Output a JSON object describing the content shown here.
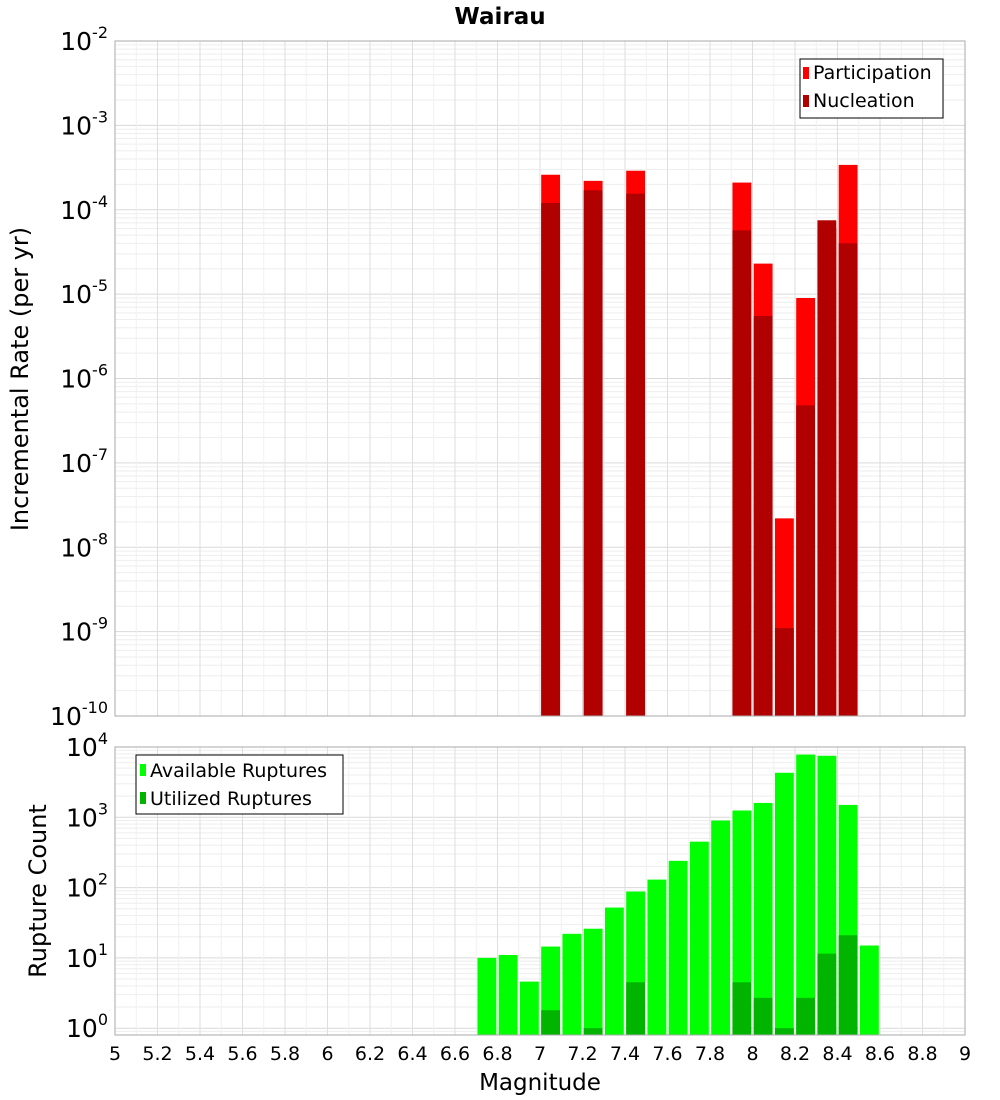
{
  "title": "Wairau",
  "xlabel": "Magnitude",
  "xlim": [
    5,
    9
  ],
  "x_ticks": [
    "5",
    "5.2",
    "5.4",
    "5.6",
    "5.8",
    "6",
    "6.2",
    "6.4",
    "6.6",
    "6.8",
    "7",
    "7.2",
    "7.4",
    "7.6",
    "7.8",
    "8",
    "8.2",
    "8.4",
    "8.6",
    "8.8",
    "9"
  ],
  "bin_width": 0.1,
  "chart_data": [
    {
      "type": "bar",
      "scale": "log",
      "ylabel": "Incremental Rate (per yr)",
      "ylim": [
        1e-10,
        0.01
      ],
      "y_ticks": [
        {
          "base": "10",
          "exp": "-10"
        },
        {
          "base": "10",
          "exp": "-9"
        },
        {
          "base": "10",
          "exp": "-8"
        },
        {
          "base": "10",
          "exp": "-7"
        },
        {
          "base": "10",
          "exp": "-6"
        },
        {
          "base": "10",
          "exp": "-5"
        },
        {
          "base": "10",
          "exp": "-4"
        },
        {
          "base": "10",
          "exp": "-3"
        },
        {
          "base": "10",
          "exp": "-2"
        }
      ],
      "legend_position": "top-right",
      "grid": true,
      "x": [
        7.05,
        7.25,
        7.45,
        7.95,
        8.05,
        8.15,
        8.25,
        8.35,
        8.45
      ],
      "series": [
        {
          "name": "Participation",
          "color": "#ff0000",
          "values": [
            0.00026,
            0.00022,
            0.00029,
            0.00021,
            2.3e-05,
            2.2e-08,
            9e-06,
            6e-05,
            0.00034
          ]
        },
        {
          "name": "Nucleation",
          "color": "#b00000",
          "values": [
            0.00012,
            0.00017,
            0.000155,
            5.7e-05,
            5.5e-06,
            1.1e-09,
            4.8e-07,
            7.5e-05,
            4e-05
          ]
        }
      ]
    },
    {
      "type": "bar",
      "scale": "log",
      "ylabel": "Rupture Count",
      "ylim": [
        0.8,
        10000
      ],
      "y_ticks": [
        {
          "base": "10",
          "exp": "0"
        },
        {
          "base": "10",
          "exp": "1"
        },
        {
          "base": "10",
          "exp": "2"
        },
        {
          "base": "10",
          "exp": "3"
        },
        {
          "base": "10",
          "exp": "4"
        }
      ],
      "legend_position": "top-left",
      "grid": true,
      "series": [
        {
          "name": "Available Ruptures",
          "color": "#00ff00",
          "x": [
            6.75,
            6.85,
            6.95,
            7.05,
            7.15,
            7.25,
            7.35,
            7.45,
            7.55,
            7.65,
            7.75,
            7.85,
            7.95,
            8.05,
            8.15,
            8.25,
            8.35,
            8.45,
            8.55
          ],
          "values": [
            10,
            11,
            4.6,
            14.5,
            22,
            26,
            52,
            88,
            130,
            240,
            450,
            900,
            1250,
            1600,
            4300,
            7800,
            7500,
            1500,
            15
          ]
        },
        {
          "name": "Utilized Ruptures",
          "color": "#00b400",
          "x": [
            7.05,
            7.25,
            7.45,
            7.95,
            8.05,
            8.15,
            8.25,
            8.35,
            8.45
          ],
          "values": [
            1.8,
            1.0,
            4.5,
            4.5,
            2.7,
            1.0,
            2.7,
            11.5,
            21
          ]
        }
      ]
    }
  ]
}
